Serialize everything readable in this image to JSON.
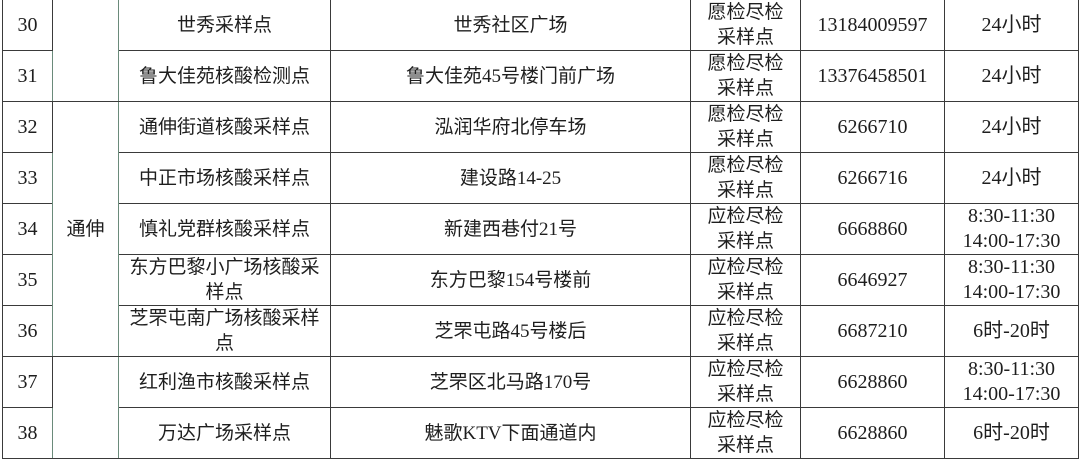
{
  "rows": [
    {
      "no": "30",
      "district": "",
      "name": "世秀采样点",
      "address": "世秀社区广场",
      "type": "愿检尽检采样点",
      "phone": "13184009597",
      "hours": "24小时"
    },
    {
      "no": "31",
      "district": "",
      "name": "鲁大佳苑核酸检测点",
      "address": "鲁大佳苑45号楼门前广场",
      "type": "愿检尽检采样点",
      "phone": "13376458501",
      "hours": "24小时"
    },
    {
      "no": "32",
      "district": "通伸",
      "name": "通伸街道核酸采样点",
      "address": "泓润华府北停车场",
      "type": "愿检尽检采样点",
      "phone": "6266710",
      "hours": "24小时"
    },
    {
      "no": "33",
      "district": "",
      "name": "中正市场核酸采样点",
      "address": "建设路14-25",
      "type": "愿检尽检采样点",
      "phone": "6266716",
      "hours": "24小时"
    },
    {
      "no": "34",
      "district": "",
      "name": "慎礼党群核酸采样点",
      "address": "新建西巷付21号",
      "type": "应检尽检采样点",
      "phone": "6668860",
      "hours": "8:30-11:30 14:00-17:30"
    },
    {
      "no": "35",
      "district": "",
      "name": "东方巴黎小广场核酸采样点",
      "address": "东方巴黎154号楼前",
      "type": "应检尽检采样点",
      "phone": "6646927",
      "hours": "8:30-11:30 14:00-17:30"
    },
    {
      "no": "36",
      "district": "",
      "name": "芝罘屯南广场核酸采样点",
      "address": "芝罘屯路45号楼后",
      "type": "应检尽检采样点",
      "phone": "6687210",
      "hours": "6时-20时"
    },
    {
      "no": "37",
      "district": "",
      "name": "红利渔市核酸采样点",
      "address": "芝罘区北马路170号",
      "type": "应检尽检采样点",
      "phone": "6628860",
      "hours": "8:30-11:30 14:00-17:30"
    },
    {
      "no": "38",
      "district": "",
      "name": "万达广场采样点",
      "address": "魅歌KTV下面通道内",
      "type": "应检尽检采样点",
      "phone": "6628860",
      "hours": "6时-20时"
    }
  ]
}
